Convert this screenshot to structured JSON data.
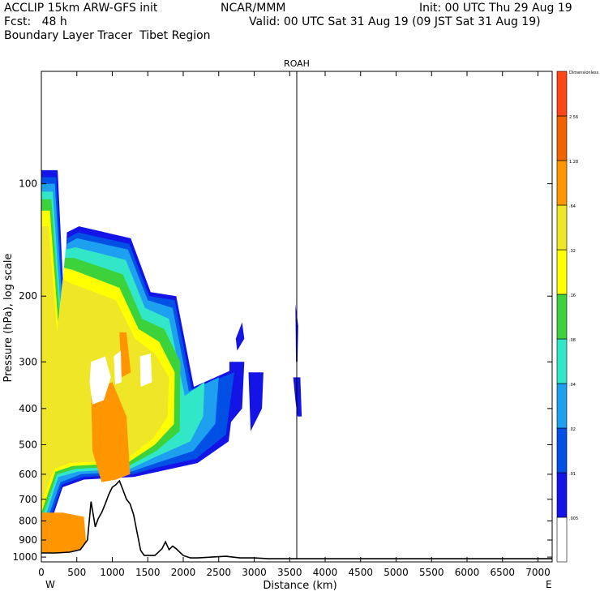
{
  "header": {
    "line1_left": "ACCLIP 15km ARW-GFS init",
    "line1_center": "NCAR/MMM",
    "line1_right": "Init: 00 UTC Thu 29 Aug 19",
    "line2_left": "Fcst:   48 h",
    "line2_right": "Valid: 00 UTC Sat 31 Aug 19 (09 JST Sat 31 Aug 19)",
    "line3_left": "Boundary Layer Tracer  Tibet Region"
  },
  "chart_data": {
    "type": "heatmap",
    "title": "ROAH",
    "xlabel": "Distance (km)",
    "ylabel": "Pressure (hPa), log scale",
    "x_range": [
      0,
      7200
    ],
    "x_ticks": [
      0,
      500,
      1000,
      1500,
      2000,
      2500,
      3000,
      3500,
      4000,
      4500,
      5000,
      5500,
      6000,
      6500,
      7000
    ],
    "y_range_hpa": [
      1030,
      50
    ],
    "y_scale": "log",
    "y_ticks": [
      100,
      200,
      300,
      400,
      500,
      600,
      700,
      800,
      900,
      1000
    ],
    "x_end_left": "W",
    "x_end_right": "E",
    "marker_line_km": 3600,
    "colorbar": {
      "labels": [
        ".005",
        ".01",
        ".02",
        ".04",
        ".08",
        ".16",
        ".32",
        ".64",
        "1.28",
        "2.56",
        "Dimensionless"
      ],
      "colors": [
        "#ffffff",
        "#1414e6",
        "#0050e6",
        "#1ea0f0",
        "#32e6c8",
        "#3cd23c",
        "#ffff00",
        "#f0e628",
        "#ff9600",
        "#f06400",
        "#ff4614"
      ]
    },
    "terrain_profile": {
      "x_km": [
        0,
        200,
        400,
        550,
        650,
        700,
        760,
        800,
        850,
        900,
        950,
        1000,
        1050,
        1100,
        1150,
        1200,
        1250,
        1300,
        1350,
        1400,
        1450,
        1500,
        1600,
        1700,
        1750,
        1800,
        1850,
        1900,
        2000,
        2100,
        2200,
        2400,
        2600,
        2800,
        3000,
        3200,
        3600,
        7200
      ],
      "p_hpa": [
        975,
        975,
        970,
        955,
        900,
        710,
        830,
        790,
        760,
        720,
        680,
        650,
        640,
        625,
        660,
        700,
        720,
        770,
        860,
        960,
        990,
        990,
        990,
        950,
        910,
        955,
        935,
        950,
        990,
        1005,
        1005,
        1000,
        995,
        1005,
        1005,
        1010,
        1010,
        1010
      ]
    },
    "plumes": [
      {
        "level": 1,
        "xs": [
          0,
          230,
          320,
          360,
          530,
          1260,
          1540,
          1900,
          2150,
          2770,
          2640,
          2200,
          1650,
          1300,
          600,
          300,
          0
        ],
        "ps": [
          92,
          92,
          210,
          135,
          130,
          140,
          195,
          200,
          350,
          310,
          490,
          560,
          590,
          610,
          620,
          650,
          960
        ]
      },
      {
        "level": 1,
        "xs": [
          2740,
          2830,
          2860,
          2760
        ],
        "ps": [
          260,
          235,
          260,
          280
        ]
      },
      {
        "level": 1,
        "xs": [
          3550,
          3650,
          3670,
          3610,
          3580
        ],
        "ps": [
          330,
          330,
          420,
          420,
          380
        ]
      },
      {
        "level": 1,
        "xs": [
          3580,
          3620,
          3610,
          3590
        ],
        "ps": [
          210,
          240,
          300,
          300
        ]
      },
      {
        "level": 1,
        "xs": [
          2920,
          3130,
          3110,
          2950
        ],
        "ps": [
          320,
          320,
          400,
          460
        ]
      },
      {
        "level": 1,
        "xs": [
          2650,
          2860,
          2830,
          2650
        ],
        "ps": [
          300,
          300,
          400,
          440
        ]
      },
      {
        "level": 2,
        "xs": [
          0,
          210,
          310,
          360,
          520,
          1240,
          1520,
          1880,
          2120,
          2720,
          2600,
          2180,
          1640,
          1290,
          590,
          290,
          0
        ],
        "ps": [
          96,
          96,
          215,
          140,
          135,
          145,
          200,
          205,
          355,
          320,
          470,
          545,
          575,
          600,
          610,
          640,
          930
        ]
      },
      {
        "level": 3,
        "xs": [
          0,
          190,
          300,
          360,
          500,
          1220,
          1500,
          1850,
          2080,
          2500,
          2450,
          2140,
          1620,
          1270,
          560,
          270,
          0
        ],
        "ps": [
          100,
          100,
          220,
          145,
          140,
          150,
          205,
          215,
          360,
          330,
          440,
          520,
          560,
          590,
          600,
          630,
          880
        ]
      },
      {
        "level": 4,
        "xs": [
          0,
          160,
          280,
          340,
          480,
          1190,
          1460,
          1800,
          2020,
          2300,
          2280,
          2100,
          1600,
          1250,
          520,
          240,
          0
        ],
        "ps": [
          105,
          105,
          225,
          150,
          148,
          160,
          215,
          230,
          370,
          340,
          420,
          490,
          540,
          580,
          590,
          610,
          840
        ]
      },
      {
        "level": 5,
        "xs": [
          0,
          140,
          260,
          330,
          460,
          1150,
          1420,
          1730,
          1960,
          1950,
          1620,
          1230,
          480,
          220,
          0
        ],
        "ps": [
          110,
          110,
          230,
          158,
          158,
          175,
          230,
          245,
          300,
          460,
          520,
          570,
          580,
          600,
          800
        ]
      },
      {
        "level": 6,
        "xs": [
          0,
          120,
          240,
          320,
          440,
          1100,
          1370,
          1660,
          1880,
          1870,
          1600,
          1210,
          440,
          200,
          0
        ],
        "ps": [
          118,
          118,
          240,
          168,
          170,
          190,
          245,
          265,
          320,
          440,
          500,
          560,
          570,
          590,
          760
        ]
      },
      {
        "level": 7,
        "xs": [
          0,
          100,
          220,
          300,
          420,
          1050,
          1320,
          1600,
          1800,
          1780,
          1580,
          1180,
          400,
          180,
          0
        ],
        "ps": [
          130,
          130,
          250,
          180,
          185,
          205,
          260,
          285,
          330,
          420,
          480,
          550,
          560,
          580,
          720
        ]
      },
      {
        "level": 8,
        "xs": [
          700,
          1000,
          1200,
          1250,
          1050,
          850,
          720
        ],
        "ps": [
          360,
          340,
          420,
          600,
          620,
          630,
          520
        ]
      },
      {
        "level": 8,
        "xs": [
          0,
          300,
          600,
          640,
          300,
          0
        ],
        "ps": [
          760,
          760,
          780,
          960,
          975,
          975
        ]
      },
      {
        "level": 8,
        "xs": [
          1100,
          1200,
          1260,
          1130
        ],
        "ps": [
          250,
          250,
          320,
          330
        ]
      }
    ],
    "holes": [
      {
        "xs": [
          700,
          900,
          980,
          880,
          720,
          680
        ],
        "ps": [
          300,
          290,
          330,
          380,
          390,
          340
        ]
      },
      {
        "xs": [
          1020,
          1120,
          1130,
          1040
        ],
        "ps": [
          290,
          280,
          340,
          345
        ]
      },
      {
        "xs": [
          1390,
          1540,
          1560,
          1400
        ],
        "ps": [
          290,
          285,
          340,
          350
        ]
      }
    ]
  }
}
